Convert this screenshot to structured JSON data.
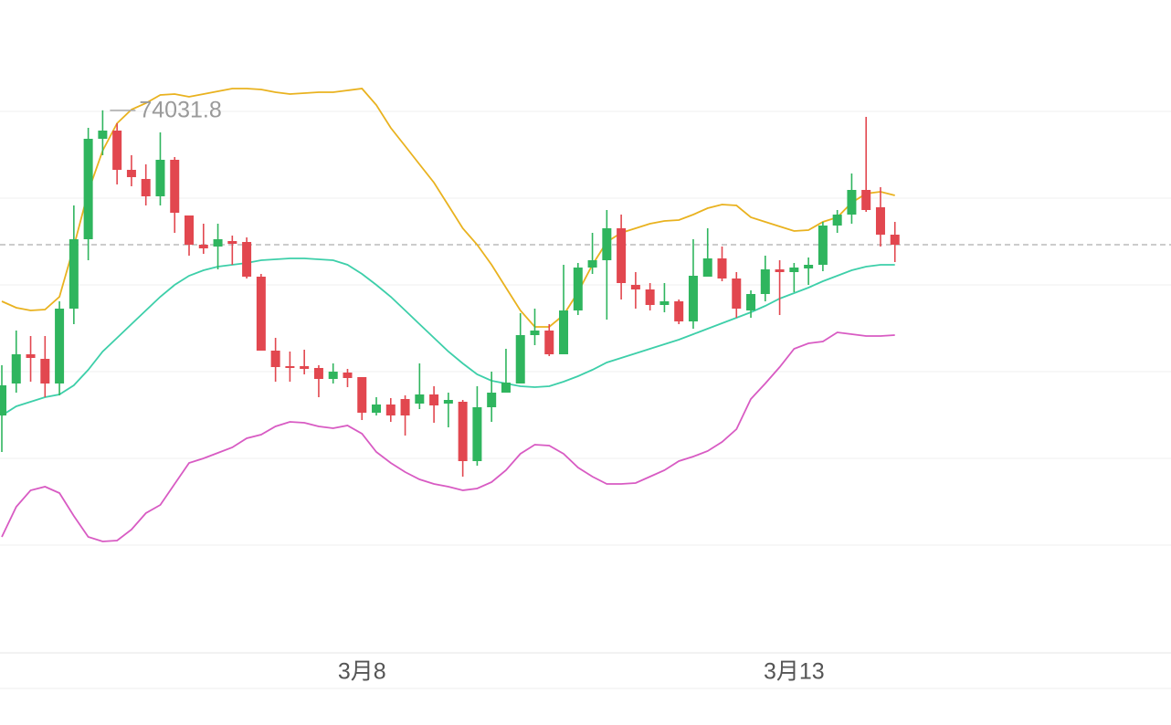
{
  "chart_data": {
    "type": "candlestick",
    "categories": [
      null,
      null,
      null,
      null,
      null,
      null,
      null,
      null,
      null,
      null,
      null,
      null,
      null,
      null,
      null,
      null,
      null,
      null,
      null,
      null,
      null,
      null,
      null,
      null,
      null,
      "3月8",
      null,
      null,
      null,
      null,
      null,
      null,
      null,
      null,
      null,
      null,
      null,
      null,
      null,
      null,
      null,
      null,
      null,
      null,
      null,
      null,
      null,
      null,
      null,
      null,
      null,
      null,
      null,
      null,
      null,
      "3月13",
      null,
      null,
      null,
      null,
      null,
      null,
      null
    ],
    "open": [
      70690,
      71040,
      71360,
      71310,
      71040,
      71860,
      72620,
      73720,
      73810,
      73380,
      73280,
      73090,
      73490,
      72880,
      72560,
      72540,
      72600,
      72590,
      72210,
      71400,
      71230,
      71230,
      71210,
      71090,
      71160,
      71110,
      70720,
      70810,
      70870,
      70820,
      70920,
      70820,
      70840,
      70190,
      70780,
      70940,
      71040,
      71570,
      71620,
      71360,
      71840,
      72310,
      72390,
      72740,
      72120,
      72070,
      71900,
      71940,
      71720,
      72210,
      72410,
      72190,
      71840,
      72020,
      72290,
      72260,
      72300,
      72340,
      72770,
      72890,
      73160,
      72970,
      72670
    ],
    "high": [
      71240,
      71620,
      71560,
      71560,
      71940,
      72990,
      73840,
      74031.8,
      73890,
      73540,
      73440,
      73790,
      73520,
      72880,
      72790,
      72790,
      72660,
      72640,
      72240,
      71540,
      71390,
      71410,
      71240,
      71260,
      71200,
      71110,
      70890,
      70880,
      70910,
      71260,
      71010,
      70940,
      70860,
      71010,
      71170,
      71420,
      71810,
      71860,
      71690,
      72340,
      72360,
      72690,
      72940,
      72890,
      72260,
      72140,
      72140,
      71960,
      72620,
      72740,
      72540,
      72260,
      72060,
      72440,
      72390,
      72360,
      72420,
      72810,
      72940,
      73340,
      73960,
      73190,
      72810
    ],
    "low": [
      70290,
      70940,
      71060,
      70890,
      70910,
      71690,
      72390,
      73540,
      73220,
      73200,
      72990,
      72990,
      72690,
      72440,
      72460,
      72290,
      72340,
      72190,
      71400,
      71060,
      71060,
      71140,
      70890,
      71040,
      71000,
      70640,
      70690,
      70620,
      70470,
      70760,
      70610,
      70560,
      70020,
      70140,
      70620,
      70940,
      71040,
      71460,
      71340,
      71360,
      71790,
      72240,
      71740,
      71960,
      71860,
      71840,
      71820,
      71690,
      71640,
      72210,
      72160,
      71760,
      71760,
      71940,
      71790,
      72040,
      72120,
      72270,
      72690,
      72790,
      72920,
      72540,
      72370
    ],
    "close": [
      71020,
      71360,
      71320,
      71040,
      71860,
      72620,
      73720,
      73810,
      73380,
      73300,
      73090,
      73490,
      72910,
      72560,
      72520,
      72620,
      72570,
      72210,
      71400,
      71220,
      71210,
      71200,
      71090,
      71170,
      71100,
      70720,
      70810,
      70690,
      70690,
      70920,
      70800,
      70860,
      70190,
      70780,
      70940,
      71050,
      71570,
      71620,
      71360,
      71840,
      72310,
      72390,
      72740,
      72140,
      72070,
      71900,
      71940,
      71720,
      72220,
      72410,
      72190,
      71860,
      72020,
      72290,
      72260,
      72310,
      72340,
      72770,
      72890,
      73160,
      72940,
      72670,
      72560
    ],
    "up_color": "#2fb55e",
    "down_color": "#e2474f",
    "bands": [
      {
        "color": "#e9b21f",
        "values": [
          71940,
          71870,
          71840,
          71850,
          71990,
          72540,
          73140,
          73590,
          73890,
          74040,
          74110,
          74200,
          74210,
          74180,
          74210,
          74240,
          74270,
          74270,
          74260,
          74230,
          74210,
          74220,
          74230,
          74230,
          74250,
          74270,
          74090,
          73840,
          73640,
          73440,
          73240,
          72990,
          72740,
          72560,
          72340,
          72090,
          71840,
          71660,
          71660,
          71790,
          72040,
          72340,
          72590,
          72690,
          72740,
          72790,
          72820,
          72830,
          72890,
          72960,
          73000,
          72990,
          72860,
          72810,
          72760,
          72710,
          72720,
          72810,
          72860,
          73020,
          73120,
          73140,
          73100
        ]
      },
      {
        "color": "#3dcfa9",
        "values": [
          70690,
          70790,
          70840,
          70890,
          70920,
          71020,
          71190,
          71390,
          71540,
          71690,
          71840,
          71990,
          72120,
          72220,
          72280,
          72320,
          72340,
          72360,
          72390,
          72400,
          72410,
          72410,
          72400,
          72390,
          72340,
          72240,
          72120,
          71990,
          71840,
          71690,
          71540,
          71390,
          71260,
          71140,
          71070,
          71040,
          71010,
          71000,
          71010,
          71060,
          71120,
          71190,
          71270,
          71320,
          71370,
          71420,
          71470,
          71520,
          71580,
          71640,
          71700,
          71760,
          71820,
          71890,
          71970,
          72030,
          72090,
          72160,
          72220,
          72280,
          72320,
          72340,
          72340
        ]
      },
      {
        "color": "#d85bc3",
        "values": [
          69360,
          69690,
          69870,
          69910,
          69840,
          69590,
          69360,
          69310,
          69320,
          69440,
          69620,
          69710,
          69940,
          70170,
          70220,
          70280,
          70340,
          70440,
          70480,
          70570,
          70620,
          70610,
          70570,
          70550,
          70580,
          70490,
          70290,
          70170,
          70070,
          69990,
          69940,
          69910,
          69870,
          69890,
          69960,
          70090,
          70270,
          70370,
          70360,
          70270,
          70120,
          70020,
          69940,
          69940,
          69950,
          70020,
          70090,
          70190,
          70240,
          70300,
          70400,
          70540,
          70870,
          71040,
          71220,
          71420,
          71480,
          71500,
          71600,
          71580,
          71560,
          71560,
          71570
        ]
      }
    ],
    "ylim": [
      68090,
      75240
    ],
    "grid": true
  }
}
